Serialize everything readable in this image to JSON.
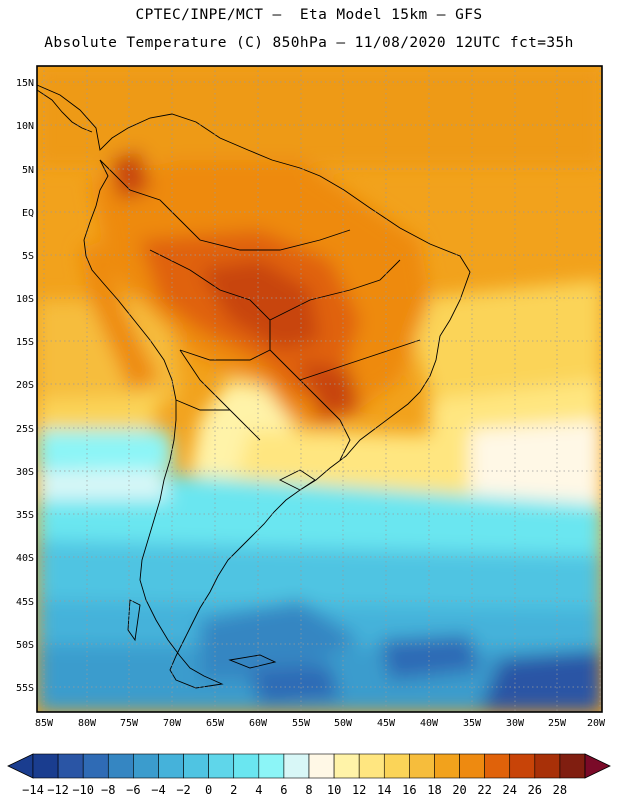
{
  "header": {
    "line1": "CPTEC/INPE/MCT –  Eta Model 15km – GFS",
    "line2": "Absolute Temperature (C) 850hPa – 11/08/2020 12UTC fct=35h"
  },
  "map": {
    "lat_labels": [
      "15N",
      "10N",
      "5N",
      "EQ",
      "5S",
      "10S",
      "15S",
      "20S",
      "25S",
      "30S",
      "35S",
      "40S",
      "45S",
      "50S",
      "55S"
    ],
    "lon_labels": [
      "85W",
      "80W",
      "75W",
      "70W",
      "65W",
      "60W",
      "55W",
      "50W",
      "45W",
      "40W",
      "35W",
      "30W",
      "25W",
      "20W"
    ]
  },
  "colorbar": {
    "labels": [
      "-14",
      "-12",
      "-10",
      "-8",
      "-6",
      "-4",
      "-2",
      "0",
      "2",
      "4",
      "6",
      "8",
      "10",
      "12",
      "14",
      "16",
      "18",
      "20",
      "22",
      "24",
      "26",
      "28"
    ],
    "colors": [
      "#1a3d8f",
      "#2a55a5",
      "#2f6bb5",
      "#3586c2",
      "#3b9ccd",
      "#45b2da",
      "#4fc4e2",
      "#5fd6ea",
      "#6ae6f0",
      "#8cf5f7",
      "#d8f7f7",
      "#fff8e6",
      "#fff3a8",
      "#ffe680",
      "#fbd458",
      "#f6bd3c",
      "#f2a21c",
      "#ee8a10",
      "#e0620a",
      "#c84408",
      "#a83008",
      "#801e10"
    ],
    "under_color": "#1a3d8f",
    "over_color": "#7a0a28"
  }
}
